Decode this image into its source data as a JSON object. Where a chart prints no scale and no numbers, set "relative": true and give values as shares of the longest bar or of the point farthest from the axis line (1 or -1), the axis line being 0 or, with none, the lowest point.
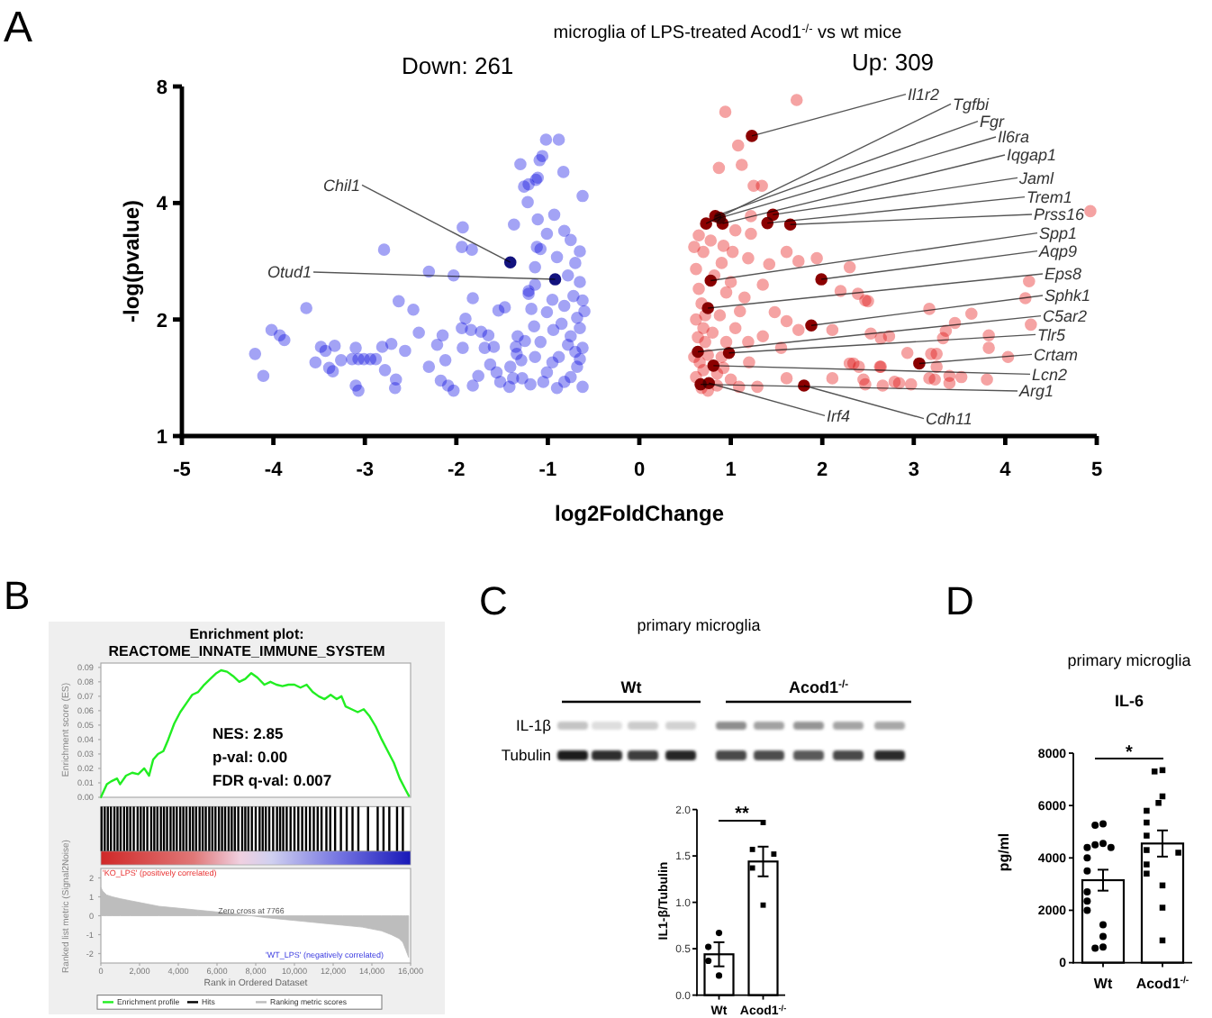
{
  "chart_data": [
    {
      "type": "scatter",
      "title": "microglia of LPS-treated Acod1$^{-/-}$ vs wt mice",
      "xlabel": "log2FoldChange",
      "ylabel": "-log(pvalue)",
      "xlim": [
        -5,
        5
      ],
      "xticks": [
        -5,
        -4,
        -3,
        -2,
        -1,
        0,
        1,
        2,
        3,
        4,
        5
      ],
      "ylim": [
        1,
        8
      ],
      "yticks": [
        1,
        2,
        4,
        8
      ],
      "log": "y",
      "marker": "circle",
      "series": [
        {
          "color": "#a3a3f5",
          "x": [
            -4.2,
            -4.11,
            -4.02,
            -3.93,
            -3.88,
            -3.64,
            -3.54,
            -3.48,
            -3.43,
            -3.39,
            -3.33,
            -3.35,
            -3.26,
            -3.14,
            -3.07,
            -3.01,
            -2.94,
            -2.88,
            -3.1,
            -3.1,
            -3.07,
            -2.81,
            -2.78,
            -2.71,
            -2.66,
            -2.67,
            -2.79,
            -2.63,
            -2.47,
            -2.56,
            -2.41,
            -2.3,
            -2.3,
            -2.21,
            -2.15,
            -2.17,
            -2.12,
            -2.09,
            -2.03,
            -2.03,
            -1.94,
            -1.93,
            -1.94,
            -1.93,
            -1.9,
            -1.83,
            -1.82,
            -1.84,
            -1.82,
            -1.76,
            -1.73,
            -1.69,
            -1.65,
            -1.63,
            -1.59,
            -1.54,
            -1.56,
            -1.52,
            -1.47,
            -1.42,
            -1.38,
            -1.37,
            -1.3,
            -1.26,
            -1.22,
            -1.21,
            -1.18,
            -1.33,
            -1.29,
            -1.35,
            -1.14,
            -1.19,
            -1.11,
            -1.09,
            -1.12,
            -1.14,
            -1.11,
            -1.02,
            -0.88,
            -1.06,
            -1.13,
            -1.21,
            -0.83,
            -0.62,
            -0.93,
            -0.82,
            -0.75,
            -1.01,
            -1.08,
            -1.14,
            -1.21,
            -0.82,
            -0.62,
            -1.01,
            -0.68,
            -0.94,
            -0.75,
            -1.08,
            -0.62,
            -0.88,
            -0.68,
            -1.01,
            -0.82,
            -0.62,
            -1.34,
            -1.28,
            -1.41,
            -0.65,
            -0.7,
            -0.9,
            -0.78,
            -0.65,
            -0.72,
            -0.95,
            -0.85,
            -0.65,
            -0.7,
            -0.95,
            -0.75,
            -0.9,
            -1.05,
            -0.65,
            -0.78,
            -1.15,
            -1.25,
            -0.6
          ],
          "values": [
            1.63,
            1.43,
            1.88,
            1.82,
            1.77,
            2.14,
            1.55,
            1.7,
            1.66,
            1.5,
            1.71,
            1.47,
            1.57,
            1.58,
            1.58,
            1.58,
            1.58,
            1.58,
            1.69,
            1.35,
            1.31,
            1.7,
            1.48,
            1.73,
            1.4,
            1.33,
            3.03,
            2.23,
            2.12,
            1.66,
            1.85,
            2.66,
            1.51,
            1.72,
            1.82,
            1.39,
            1.57,
            1.35,
            1.31,
            2.6,
            1.9,
            3.46,
            3.08,
            1.69,
            2.01,
            3.03,
            2.27,
            1.88,
            1.35,
            1.43,
            1.86,
            1.69,
            1.82,
            1.53,
            1.7,
            2.11,
            1.46,
            1.38,
            2.15,
            1.34,
            1.41,
            3.52,
            5.04,
            4.41,
            4.02,
            2.33,
            2.13,
            1.81,
            1.57,
            1.7,
            1.6,
            1.36,
            4.65,
            5.16,
            3.08,
            2.73,
            3.63,
            5.83,
            5.83,
            5.29,
            4.59,
            4.47,
            4.81,
            4.17,
            3.73,
            3.39,
            3.21,
            3.33,
            3.04,
            2.46,
            2.37,
            2.17,
            2.24,
            2.09,
            2.02,
            1.88,
            1.81,
            1.75,
            1.69,
            1.6,
            1.51,
            1.46,
            1.38,
            1.34,
            1.63,
            1.41,
            1.51,
            3.0,
            2.8,
            2.9,
            2.6,
            2.5,
            2.3,
            2.25,
            1.95,
            1.9,
            1.65,
            1.55,
            1.42,
            1.33,
            1.38,
            1.58,
            1.72,
            1.92,
            1.76,
            2.1
          ]
        },
        {
          "color": "#f5a3a3",
          "x": [
            1.72,
            0.94,
            1.08,
            0.87,
            1.12,
            1.25,
            1.34,
            1.22,
            1.22,
            0.6,
            0.7,
            1.02,
            1.19,
            1.42,
            1.61,
            1.74,
            1.94,
            2.3,
            2.47,
            2.2,
            1.35,
            1.15,
            1.48,
            1.61,
            1.74,
            2.11,
            1.35,
            1.19,
            1.55,
            2.34,
            2.63,
            2.79,
            2.11,
            1.61,
            1.29,
            1.09,
            2.47,
            0.62,
            0.65,
            0.68,
            0.62,
            0.7,
            0.64,
            0.72,
            0.6,
            0.66,
            0.7,
            0.62,
            0.68,
            0.75,
            0.85,
            0.9,
            0.8,
            0.88,
            0.95,
            0.82,
            0.9,
            1.0,
            0.95,
            1.05,
            1.0,
            0.85,
            1.1,
            1.2,
            0.78,
            0.65,
            1.05,
            0.92,
            0.75,
            0.92,
            0.72,
            4.93,
            4.26,
            4.22,
            2.39,
            2.5,
            3.17,
            3.63,
            3.45,
            3.35,
            4.28,
            2.53,
            2.64,
            2.73,
            3.82,
            3.32,
            3.82,
            2.93,
            3.19,
            3.25,
            4.03,
            3.25,
            2.64,
            2.4,
            2.3,
            3.39,
            3.52,
            3.17,
            3.23,
            2.45,
            2.84,
            2.97,
            3.8,
            2.66,
            3.39
          ],
          "values": [
            7.38,
            6.88,
            5.63,
            4.93,
            5.02,
            4.43,
            4.43,
            3.7,
            3.33,
            3.08,
            2.99,
            2.99,
            2.88,
            2.78,
            2.99,
            2.83,
            2.88,
            2.73,
            2.24,
            2.37,
            2.46,
            2.28,
            2.09,
            1.98,
            1.88,
            1.88,
            1.81,
            1.75,
            1.69,
            1.54,
            1.51,
            1.38,
            1.41,
            1.41,
            1.34,
            1.34,
            1.36,
            2.7,
            2.4,
            2.2,
            2.0,
            1.9,
            1.8,
            1.75,
            1.6,
            1.55,
            1.48,
            1.42,
            1.33,
            1.31,
            1.45,
            1.6,
            1.85,
            2.05,
            2.35,
            2.6,
            2.8,
            2.5,
            1.75,
            1.9,
            1.4,
            1.35,
            2.1,
            1.55,
            3.2,
            3.3,
            3.4,
            3.1,
            1.62,
            1.5,
            2.05,
            3.81,
            2.51,
            2.27,
            2.33,
            2.23,
            2.13,
            2.07,
            1.96,
            1.87,
            1.94,
            1.84,
            1.79,
            1.81,
            1.82,
            1.79,
            1.69,
            1.64,
            1.63,
            1.63,
            1.6,
            1.51,
            1.51,
            1.51,
            1.54,
            1.43,
            1.42,
            1.41,
            1.4,
            1.4,
            1.37,
            1.36,
            1.4,
            1.35,
            1.37
          ]
        },
        {
          "color": "#12127e",
          "x": [
            -1.41,
            -0.92
          ],
          "values": [
            2.81,
            2.54
          ]
        },
        {
          "color": "#8b0000",
          "x": [
            1.23,
            0.73,
            0.83,
            0.88,
            0.91,
            1.46,
            1.4,
            1.65,
            0.78,
            1.99,
            0.75,
            1.88,
            0.64,
            0.98,
            3.06,
            0.81,
            0.67,
            1.8,
            0.76
          ],
          "values": [
            5.96,
            3.54,
            3.7,
            3.66,
            3.54,
            3.73,
            3.55,
            3.52,
            2.52,
            2.54,
            2.14,
            1.93,
            1.65,
            1.64,
            1.54,
            1.52,
            1.36,
            1.35,
            1.37
          ]
        }
      ],
      "annotations": [
        "A",
        "Down: 261",
        "Up: 309",
        {
          "text": "Il1r2",
          "x": 1.23,
          "y": 5.96
        },
        {
          "text": "Tgfbi",
          "x": 0.73,
          "y": 3.54
        },
        {
          "text": "Fgr",
          "x": 0.83,
          "y": 3.7
        },
        {
          "text": "Il6ra",
          "x": 0.88,
          "y": 3.66
        },
        {
          "text": "Iqgap1",
          "x": 0.91,
          "y": 3.54
        },
        {
          "text": "Jaml",
          "x": 1.46,
          "y": 3.73
        },
        {
          "text": "Trem1",
          "x": 1.4,
          "y": 3.55
        },
        {
          "text": "Prss16",
          "x": 1.65,
          "y": 3.52
        },
        {
          "text": "Spp1",
          "x": 0.78,
          "y": 2.52
        },
        {
          "text": "Aqp9",
          "x": 1.99,
          "y": 2.54
        },
        {
          "text": "Eps8",
          "x": 0.75,
          "y": 2.14
        },
        {
          "text": "Sphk1",
          "x": 1.88,
          "y": 1.93
        },
        {
          "text": "C5ar2",
          "x": 0.64,
          "y": 1.65
        },
        {
          "text": "Tlr5",
          "x": 0.98,
          "y": 1.64
        },
        {
          "text": "Crtam",
          "x": 3.06,
          "y": 1.54
        },
        {
          "text": "Lcn2",
          "x": 0.81,
          "y": 1.52
        },
        {
          "text": "Arg1",
          "x": 0.67,
          "y": 1.36
        },
        {
          "text": "Cdh11",
          "x": 1.8,
          "y": 1.35
        },
        {
          "text": "Irf4",
          "x": 0.76,
          "y": 1.37
        },
        {
          "text": "Chil1",
          "x": -1.41,
          "y": 2.81
        },
        {
          "text": "Otud1",
          "x": -0.92,
          "y": 2.54
        }
      ]
    },
    {
      "type": "line",
      "title": "Enrichment plot: REACTOME_INNATE_IMMUNE_SYSTEM",
      "ylabel": "Enrichment score (ES)",
      "xlim": [
        0,
        16000
      ],
      "ylim": [
        0,
        0.093
      ],
      "yticks": [
        {
          "value": 0,
          "label": "0.00"
        },
        {
          "value": 0.01,
          "label": "0.01"
        },
        {
          "value": 0.02,
          "label": "0.02"
        },
        {
          "value": 0.03,
          "label": "0.03"
        },
        {
          "value": 0.04,
          "label": "0.04"
        },
        {
          "value": 0.05,
          "label": "0.05"
        },
        {
          "value": 0.06,
          "label": "0.06"
        },
        {
          "value": 0.07,
          "label": "0.07"
        },
        {
          "value": 0.08,
          "label": "0.08"
        },
        {
          "value": 0.09,
          "label": "0.09"
        }
      ],
      "tick_labels": "y",
      "legend": "bottom",
      "series": [
        {
          "name": "Enrichment profile",
          "color": "#22ee22",
          "x": [
            0,
            310,
            530,
            840,
            990,
            1300,
            1620,
            1930,
            2240,
            2490,
            2700,
            2950,
            3230,
            3480,
            3790,
            4100,
            4410,
            4720,
            5030,
            5340,
            5650,
            5970,
            6210,
            6520,
            6830,
            7150,
            7460,
            7770,
            8080,
            8450,
            8760,
            9070,
            9380,
            9690,
            10000,
            10310,
            10630,
            10940,
            11250,
            11560,
            11870,
            12180,
            12430,
            12640,
            12950,
            13270,
            13580,
            13890,
            14200,
            14510,
            14820,
            15130,
            15440,
            15750,
            15910
          ],
          "values": [
            0,
            0.009,
            0.011,
            0.013,
            0.009,
            0.015,
            0.017,
            0.016,
            0.02,
            0.015,
            0.026,
            0.03,
            0.032,
            0.04,
            0.051,
            0.059,
            0.065,
            0.071,
            0.073,
            0.078,
            0.082,
            0.086,
            0.088,
            0.087,
            0.084,
            0.08,
            0.082,
            0.086,
            0.083,
            0.078,
            0.08,
            0.078,
            0.077,
            0.078,
            0.078,
            0.076,
            0.078,
            0.073,
            0.07,
            0.068,
            0.071,
            0.068,
            0.07,
            0.063,
            0.061,
            0.059,
            0.061,
            0.056,
            0.049,
            0.04,
            0.032,
            0.024,
            0.013,
            0.005,
            0.001
          ]
        }
      ],
      "annotations": [
        "B",
        "NES: 2.85",
        "p-val: 0.00",
        "FDR q-val: 0.007"
      ]
    },
    {
      "type": "bar",
      "relative": true,
      "xlim": [
        0,
        16000
      ],
      "tick_labels": false,
      "legend": "bottom",
      "x": [
        40,
        200,
        360,
        520,
        700,
        860,
        1020,
        1200,
        1360,
        1520,
        1700,
        1900,
        2060,
        2220,
        2400,
        2600,
        2760,
        2920,
        3100,
        3260,
        3420,
        3600,
        3760,
        3920,
        4100,
        4260,
        4420,
        4600,
        4760,
        4920,
        5100,
        5260,
        5420,
        5600,
        5760,
        5920,
        6100,
        6260,
        6420,
        6600,
        6760,
        6920,
        7100,
        7300,
        7460,
        7620,
        7800,
        8000,
        8200,
        8360,
        8520,
        8700,
        8900,
        9100,
        9260,
        9420,
        9600,
        9800,
        10000,
        10200,
        10400,
        10600,
        10800,
        11000,
        11200,
        11400,
        11650,
        11850,
        12100,
        12400,
        12700,
        13000,
        13300,
        13800,
        14300,
        14600,
        14900,
        15300,
        15600
      ],
      "series": [
        {
          "name": "Hits",
          "color": "#000000",
          "values": [
            1,
            1,
            1,
            1,
            1,
            1,
            1,
            1,
            1,
            1,
            1,
            1,
            1,
            1,
            1,
            1,
            1,
            1,
            1,
            1,
            1,
            1,
            1,
            1,
            1,
            1,
            1,
            1,
            1,
            1,
            1,
            1,
            1,
            1,
            1,
            1,
            1,
            1,
            1,
            1,
            1,
            1,
            1,
            1,
            1,
            1,
            1,
            1,
            1,
            1,
            1,
            1,
            1,
            1,
            1,
            1,
            1,
            1,
            1,
            1,
            1,
            1,
            1,
            1,
            1,
            1,
            1,
            1,
            1,
            1,
            1,
            1,
            1,
            1,
            1,
            1,
            1,
            1,
            1
          ]
        }
      ]
    },
    {
      "type": "area",
      "xlabel": "Rank in Ordered Dataset",
      "ylabel": "Ranked list metric (Signal2Noise)",
      "xlim": [
        0,
        16000
      ],
      "xticks": [
        {
          "value": 0,
          "label": "0"
        },
        {
          "value": 2000,
          "label": "2,000"
        },
        {
          "value": 4000,
          "label": "4,000"
        },
        {
          "value": 6000,
          "label": "6,000"
        },
        {
          "value": 8000,
          "label": "8,000"
        },
        {
          "value": 10000,
          "label": "10,000"
        },
        {
          "value": 12000,
          "label": "12,000"
        },
        {
          "value": 14000,
          "label": "14,000"
        },
        {
          "value": 16000,
          "label": "16,000"
        }
      ],
      "ylim": [
        -2.5,
        2.5
      ],
      "yticks": [
        -2,
        -1,
        0,
        1,
        2
      ],
      "legend": "bottom",
      "series": [
        {
          "name": "Ranking metric scores",
          "color": "#bdbdbd",
          "x": [
            0,
            100,
            300,
            600,
            1000,
            1500,
            2000,
            3000,
            4000,
            5000,
            6000,
            7000,
            7766,
            8500,
            9500,
            10500,
            11500,
            12500,
            13500,
            14500,
            15000,
            15400,
            15600,
            15750,
            15900
          ],
          "values": [
            1.5,
            1.3,
            1.1,
            1.0,
            0.9,
            0.8,
            0.7,
            0.5,
            0.4,
            0.3,
            0.2,
            0.1,
            0,
            -0.1,
            -0.2,
            -0.3,
            -0.4,
            -0.5,
            -0.6,
            -0.8,
            -1.0,
            -1.2,
            -1.4,
            -1.8,
            -2.2
          ]
        }
      ],
      "annotations": [
        "'KO_LPS' (positively correlated)",
        {
          "text": "Zero cross at 7766",
          "x": 7766,
          "y": 0
        },
        "'WT_LPS' (negatively correlated)"
      ]
    },
    {
      "type": "bar",
      "title": "primary microglia",
      "ylabel": "IL1-β/Tubulin",
      "categories": [
        "Wt",
        "Acod1$^{-/-}$"
      ],
      "ylim": [
        0,
        2
      ],
      "yticks": [
        {
          "value": 0,
          "label": "0.0"
        },
        {
          "value": 0.5,
          "label": "0.5"
        },
        {
          "value": 1,
          "label": "1.0"
        },
        {
          "value": 1.5,
          "label": "1.5"
        },
        {
          "value": 2,
          "label": "2.0"
        }
      ],
      "series": [
        {
          "color": "#ffffff",
          "values": [
            0.44,
            1.44
          ],
          "errors": [
            0.13,
            0.16
          ]
        },
        {
          "type": "scatter",
          "color": "#000000",
          "marker": "circle",
          "x": [
            "Wt",
            "Wt",
            "Wt",
            "Wt"
          ],
          "values": [
            0.67,
            0.52,
            0.37,
            0.21
          ]
        },
        {
          "type": "scatter",
          "color": "#000000",
          "marker": "square",
          "x": [
            "Acod1$^{-/-}$",
            "Acod1$^{-/-}$",
            "Acod1$^{-/-}$",
            "Acod1$^{-/-}$",
            "Acod1$^{-/-}$"
          ],
          "values": [
            1.86,
            1.57,
            1.52,
            1.37,
            0.97
          ]
        }
      ],
      "annotations": [
        "C",
        "Wt",
        "Acod1$^{-/-}$",
        "IL-1β",
        "Tubulin",
        "**"
      ]
    },
    {
      "type": "bar",
      "title": "primary microglia",
      "subtitle": "IL-6",
      "ylabel": "pg/ml",
      "categories": [
        "Wt",
        "Acod1$^{-/-}$"
      ],
      "ylim": [
        0,
        8000
      ],
      "yticks": [
        0,
        2000,
        4000,
        6000,
        8000
      ],
      "series": [
        {
          "color": "#ffffff",
          "values": [
            3150,
            4550
          ],
          "errors": [
            400,
            500
          ]
        },
        {
          "type": "scatter",
          "color": "#000000",
          "marker": "circle",
          "x": [
            "Wt",
            "Wt",
            "Wt",
            "Wt",
            "Wt",
            "Wt",
            "Wt",
            "Wt",
            "Wt",
            "Wt",
            "Wt",
            "Wt",
            "Wt",
            "Wt",
            "Wt"
          ],
          "values": [
            5300,
            5250,
            4550,
            4500,
            4400,
            4400,
            4000,
            3500,
            2700,
            2350,
            2000,
            1450,
            1000,
            600,
            550
          ]
        },
        {
          "type": "scatter",
          "color": "#000000",
          "marker": "square",
          "x": [
            "Acod1$^{-/-}$",
            "Acod1$^{-/-}$",
            "Acod1$^{-/-}$",
            "Acod1$^{-/-}$",
            "Acod1$^{-/-}$",
            "Acod1$^{-/-}$",
            "Acod1$^{-/-}$",
            "Acod1$^{-/-}$",
            "Acod1$^{-/-}$",
            "Acod1$^{-/-}$",
            "Acod1$^{-/-}$",
            "Acod1$^{-/-}$",
            "Acod1$^{-/-}$",
            "Acod1$^{-/-}$"
          ],
          "values": [
            7350,
            7300,
            6350,
            6100,
            5800,
            5350,
            4850,
            4300,
            4200,
            3750,
            3400,
            2950,
            2100,
            850
          ]
        }
      ],
      "annotations": [
        "D",
        "*"
      ]
    }
  ]
}
